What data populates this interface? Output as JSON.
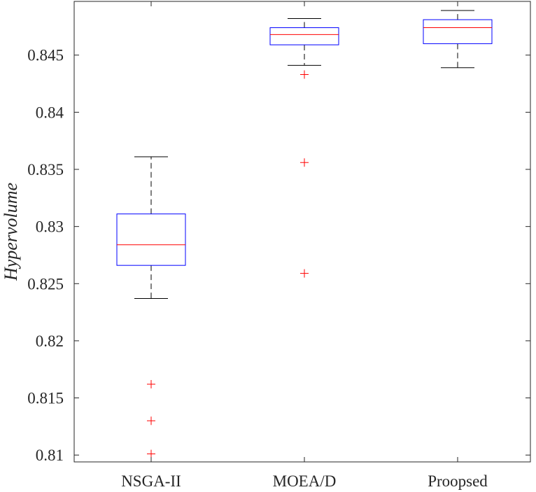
{
  "chart_data": {
    "type": "box",
    "title": "",
    "xlabel": "",
    "ylabel": "Hypervolume",
    "ylim": [
      0.8094,
      0.8497
    ],
    "yticks": [
      0.81,
      0.815,
      0.82,
      0.825,
      0.83,
      0.835,
      0.84,
      0.845
    ],
    "ytick_labels": [
      "0.81",
      "0.815",
      "0.82",
      "0.825",
      "0.83",
      "0.835",
      "0.84",
      "0.845"
    ],
    "grid": false,
    "categories": [
      "NSGA-II",
      "MOEA/D",
      "Proopsed"
    ],
    "boxes": [
      {
        "label": "NSGA-II",
        "whisker_low": 0.8237,
        "q1": 0.8266,
        "median": 0.8284,
        "q3": 0.8311,
        "whisker_high": 0.8361,
        "outliers": [
          0.8162,
          0.813,
          0.8101
        ]
      },
      {
        "label": "MOEA/D",
        "whisker_low": 0.8441,
        "q1": 0.8459,
        "median": 0.8468,
        "q3": 0.8474,
        "whisker_high": 0.8482,
        "outliers": [
          0.8433,
          0.8356,
          0.8259
        ]
      },
      {
        "label": "Proopsed",
        "whisker_low": 0.8439,
        "q1": 0.846,
        "median": 0.8474,
        "q3": 0.8481,
        "whisker_high": 0.8489,
        "outliers": []
      }
    ],
    "colors": {
      "box": "#0000ff",
      "median": "#ff0000",
      "whisker": "#000000",
      "outlier": "#ff0000",
      "axis": "#262626"
    }
  }
}
